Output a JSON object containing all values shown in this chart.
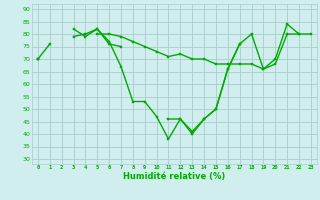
{
  "background_color": "#d0eeee",
  "grid_color": "#aacccc",
  "line_color": "#00aa00",
  "xlabel": "Humidité relative (%)",
  "ylim": [
    28,
    92
  ],
  "xlim": [
    -0.5,
    23.5
  ],
  "yticks": [
    30,
    35,
    40,
    45,
    50,
    55,
    60,
    65,
    70,
    75,
    80,
    85,
    90
  ],
  "xticks": [
    0,
    1,
    2,
    3,
    4,
    5,
    6,
    7,
    8,
    9,
    10,
    11,
    12,
    13,
    14,
    15,
    16,
    17,
    18,
    19,
    20,
    21,
    22,
    23
  ],
  "series1": [
    70,
    76,
    null,
    79,
    80,
    82,
    76,
    75,
    null,
    null,
    null,
    46,
    46,
    41,
    46,
    50,
    66,
    76,
    null,
    null,
    null,
    null,
    null,
    null
  ],
  "series2": [
    70,
    null,
    null,
    82,
    79,
    82,
    77,
    67,
    53,
    53,
    47,
    38,
    46,
    40,
    46,
    50,
    66,
    76,
    80,
    66,
    70,
    84,
    80,
    null
  ],
  "series3": [
    70,
    null,
    null,
    null,
    null,
    80,
    80,
    79,
    77,
    75,
    73,
    71,
    72,
    70,
    70,
    68,
    68,
    68,
    68,
    66,
    68,
    80,
    80,
    80
  ]
}
